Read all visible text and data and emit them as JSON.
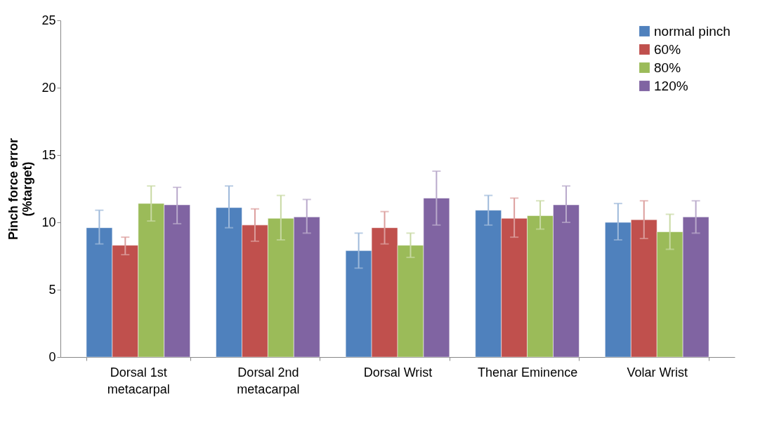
{
  "chart_data": {
    "type": "bar",
    "ylabel": "Pinch force error (%target)",
    "categories": [
      "Dorsal 1st metacarpal",
      "Dorsal 2nd metacarpal",
      "Dorsal Wrist",
      "Thenar Eminence",
      "Volar Wrist"
    ],
    "series": [
      {
        "name": "normal pinch",
        "color": "#4f81bd",
        "values": [
          9.6,
          11.1,
          7.9,
          10.9,
          10.0
        ],
        "errors": [
          [
            8.4,
            10.9
          ],
          [
            9.6,
            12.7
          ],
          [
            6.6,
            9.2
          ],
          [
            9.8,
            12.0
          ],
          [
            8.7,
            11.4
          ]
        ]
      },
      {
        "name": "60%",
        "color": "#c0504d",
        "values": [
          8.3,
          9.8,
          9.6,
          10.3,
          10.2
        ],
        "errors": [
          [
            7.6,
            8.9
          ],
          [
            8.6,
            11.0
          ],
          [
            8.4,
            10.8
          ],
          [
            8.9,
            11.8
          ],
          [
            8.8,
            11.6
          ]
        ]
      },
      {
        "name": "80%",
        "color": "#9bbb59",
        "values": [
          11.4,
          10.3,
          8.3,
          10.5,
          9.3
        ],
        "errors": [
          [
            10.1,
            12.7
          ],
          [
            8.7,
            12.0
          ],
          [
            7.4,
            9.2
          ],
          [
            9.5,
            11.6
          ],
          [
            8.0,
            10.6
          ]
        ]
      },
      {
        "name": "120%",
        "color": "#8064a2",
        "values": [
          11.3,
          10.4,
          11.8,
          11.3,
          10.4
        ],
        "errors": [
          [
            9.9,
            12.6
          ],
          [
            9.2,
            11.7
          ],
          [
            9.8,
            13.8
          ],
          [
            10.0,
            12.7
          ],
          [
            9.2,
            11.6
          ]
        ]
      }
    ],
    "ylim": [
      0,
      25
    ],
    "yticks": [
      0,
      5,
      10,
      15,
      20,
      25
    ],
    "grid": false,
    "legend": "top right"
  }
}
